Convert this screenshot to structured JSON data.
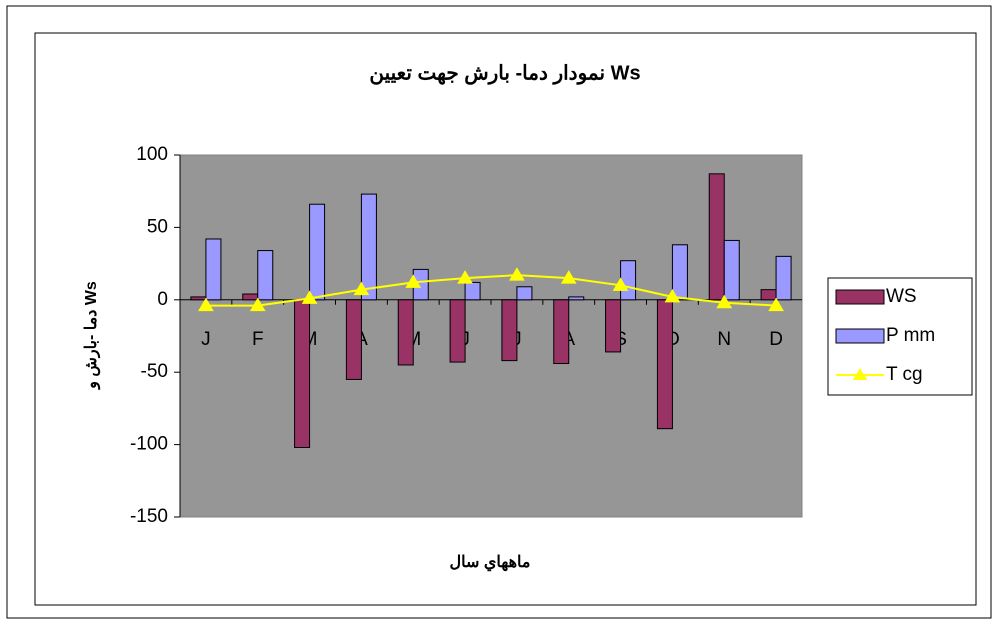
{
  "chart_data": {
    "type": "bar",
    "title": "نمودار دما- بارش جهت تعيين  Ws",
    "x_label": "ماههاي سال",
    "y_label": "دما -بارش و  Ws",
    "categories": [
      "J",
      "F",
      "M",
      "A",
      "M",
      "J",
      "J",
      "A",
      "S",
      "O",
      "N",
      "D"
    ],
    "series": [
      {
        "name": "WS",
        "type": "bar",
        "color": "#993366",
        "values": [
          2,
          4,
          -102,
          -55,
          -45,
          -43,
          -42,
          -44,
          -36,
          -89,
          87,
          7
        ]
      },
      {
        "name": "P mm",
        "type": "bar",
        "color": "#9999ff",
        "values": [
          42,
          34,
          66,
          73,
          21,
          12,
          9,
          2,
          27,
          38,
          41,
          30
        ]
      },
      {
        "name": "T cg",
        "type": "line",
        "color": "#ffff00",
        "values": [
          -4,
          -4,
          1,
          7,
          12,
          15,
          17,
          15,
          10,
          2,
          -2,
          -4
        ]
      }
    ],
    "ylim": [
      -150,
      100
    ],
    "yticks": [
      100,
      50,
      0,
      -50,
      -100,
      -150
    ],
    "legend": "right"
  }
}
